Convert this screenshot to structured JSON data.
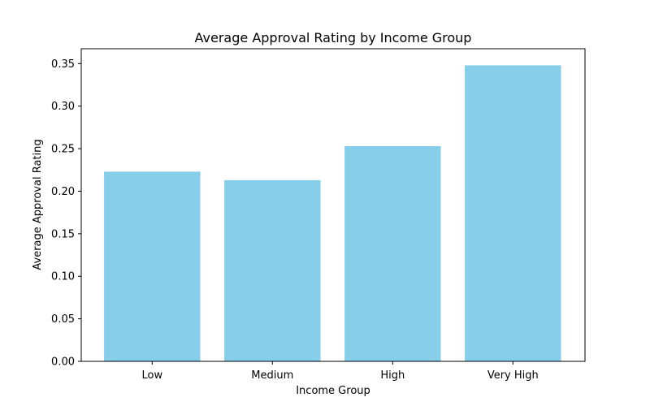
{
  "chart_data": {
    "type": "bar",
    "title": "Average Approval Rating by Income Group",
    "xlabel": "Income Group",
    "ylabel": "Average Approval Rating",
    "categories": [
      "Low",
      "Medium",
      "High",
      "Very High"
    ],
    "values": [
      0.223,
      0.213,
      0.253,
      0.348
    ],
    "ylim": [
      0,
      0.3675
    ],
    "yticks": [
      "0.00",
      "0.05",
      "0.10",
      "0.15",
      "0.20",
      "0.25",
      "0.30",
      "0.35"
    ],
    "bar_color": "#87ceeb",
    "grid": false,
    "legend": "none"
  }
}
